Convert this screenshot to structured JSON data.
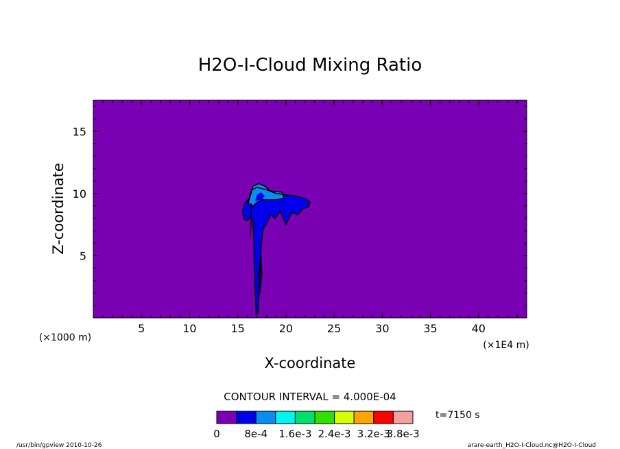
{
  "chart_data": {
    "type": "heatmap",
    "title": "H2O-I-Cloud Mixing Ratio",
    "xlabel": "X-coordinate",
    "ylabel": "Z-coordinate",
    "x_unit": "(×1E4 m)",
    "y_unit": "(×1000 m)",
    "xlim": [
      0,
      45
    ],
    "ylim": [
      0,
      17.5
    ],
    "x_ticks": [
      "5",
      "10",
      "15",
      "20",
      "25",
      "30",
      "35",
      "40"
    ],
    "y_ticks": [
      "5",
      "10",
      "15"
    ],
    "contour_interval_text": "CONTOUR INTERVAL = 4.000E-04",
    "time_text": "t=7150 s",
    "colorbar": {
      "colors": [
        "#7a00b3",
        "#0000ee",
        "#0a8cf5",
        "#00f5f0",
        "#00e070",
        "#30e000",
        "#d8ff00",
        "#ffa500",
        "#ff0000",
        "#f2a0a0"
      ],
      "labels": [
        "0",
        "8e-4",
        "1.6e-3",
        "2.4e-3",
        "3.2e-3",
        "3.8e-3"
      ]
    },
    "regions": [
      {
        "level": 1,
        "polygon": [
          [
            15.5,
            8.6
          ],
          [
            15.7,
            9.2
          ],
          [
            16.2,
            9.6
          ],
          [
            16.5,
            10.3
          ],
          [
            17.0,
            10.5
          ],
          [
            18.0,
            10.3
          ],
          [
            19.0,
            10.0
          ],
          [
            20.0,
            9.9
          ],
          [
            21.0,
            9.8
          ],
          [
            22.0,
            9.6
          ],
          [
            22.5,
            9.3
          ],
          [
            22.3,
            8.9
          ],
          [
            21.8,
            8.8
          ],
          [
            21.2,
            8.3
          ],
          [
            20.6,
            8.5
          ],
          [
            20.0,
            7.5
          ],
          [
            19.4,
            8.6
          ],
          [
            18.9,
            8.0
          ],
          [
            18.4,
            8.3
          ],
          [
            18.0,
            7.6
          ],
          [
            17.6,
            7.1
          ],
          [
            17.4,
            5.5
          ],
          [
            17.3,
            3.0
          ],
          [
            17.1,
            0.4
          ],
          [
            16.9,
            0.3
          ],
          [
            16.8,
            2.5
          ],
          [
            16.7,
            5.0
          ],
          [
            16.6,
            7.8
          ],
          [
            16.3,
            8.1
          ],
          [
            16.0,
            7.8
          ],
          [
            15.6,
            8.0
          ]
        ]
      },
      {
        "level": 2,
        "polygon": [
          [
            16.1,
            9.2
          ],
          [
            16.3,
            10.0
          ],
          [
            16.6,
            10.6
          ],
          [
            17.2,
            10.8
          ],
          [
            17.8,
            10.6
          ],
          [
            18.4,
            10.2
          ],
          [
            19.6,
            10.1
          ],
          [
            19.8,
            9.6
          ],
          [
            19.0,
            9.5
          ],
          [
            18.3,
            9.5
          ],
          [
            17.6,
            9.5
          ],
          [
            17.0,
            9.3
          ],
          [
            16.6,
            9.0
          ]
        ]
      },
      {
        "level": 1,
        "polygon": [
          [
            16.8,
            9.4
          ],
          [
            17.0,
            9.9
          ],
          [
            17.4,
            10.1
          ],
          [
            17.8,
            9.8
          ],
          [
            17.5,
            9.5
          ]
        ]
      }
    ],
    "contour_lines": [
      [
        [
          15.5,
          8.6
        ],
        [
          15.7,
          9.2
        ],
        [
          16.2,
          9.6
        ],
        [
          16.5,
          10.3
        ],
        [
          17.0,
          10.5
        ],
        [
          18.0,
          10.3
        ],
        [
          19.0,
          10.0
        ],
        [
          20.0,
          9.9
        ],
        [
          21.0,
          9.8
        ],
        [
          22.0,
          9.6
        ],
        [
          22.5,
          9.3
        ],
        [
          22.3,
          8.9
        ],
        [
          21.8,
          8.8
        ],
        [
          21.2,
          8.3
        ],
        [
          20.6,
          8.5
        ],
        [
          20.0,
          7.5
        ],
        [
          19.4,
          8.6
        ],
        [
          18.9,
          8.0
        ],
        [
          18.4,
          8.3
        ],
        [
          18.0,
          7.6
        ],
        [
          17.6,
          7.1
        ],
        [
          17.4,
          5.5
        ],
        [
          17.3,
          3.0
        ],
        [
          17.1,
          0.4
        ],
        [
          16.9,
          0.3
        ],
        [
          16.8,
          2.5
        ],
        [
          16.7,
          5.0
        ],
        [
          16.6,
          7.8
        ],
        [
          16.3,
          8.1
        ],
        [
          16.0,
          7.8
        ],
        [
          15.6,
          8.0
        ],
        [
          15.5,
          8.6
        ]
      ],
      [
        [
          16.1,
          9.2
        ],
        [
          16.3,
          10.0
        ],
        [
          16.6,
          10.6
        ],
        [
          17.2,
          10.8
        ],
        [
          17.8,
          10.6
        ],
        [
          18.4,
          10.2
        ],
        [
          19.6,
          10.1
        ],
        [
          19.8,
          9.6
        ],
        [
          19.0,
          9.5
        ],
        [
          18.3,
          9.5
        ],
        [
          17.6,
          9.5
        ],
        [
          17.0,
          9.3
        ],
        [
          16.6,
          9.0
        ],
        [
          16.1,
          9.2
        ]
      ],
      [
        [
          16.3,
          6.5
        ],
        [
          16.4,
          8.0
        ],
        [
          16.4,
          9.2
        ]
      ],
      [
        [
          17.3,
          2.0
        ],
        [
          17.5,
          3.5
        ],
        [
          17.4,
          5.0
        ],
        [
          17.2,
          3.5
        ],
        [
          17.3,
          2.0
        ]
      ]
    ]
  },
  "footer": {
    "left": "/usr/bin/gpview   2010-10-26",
    "right": "arare-earth_H2O-I-Cloud.nc@H2O-I-Cloud"
  }
}
